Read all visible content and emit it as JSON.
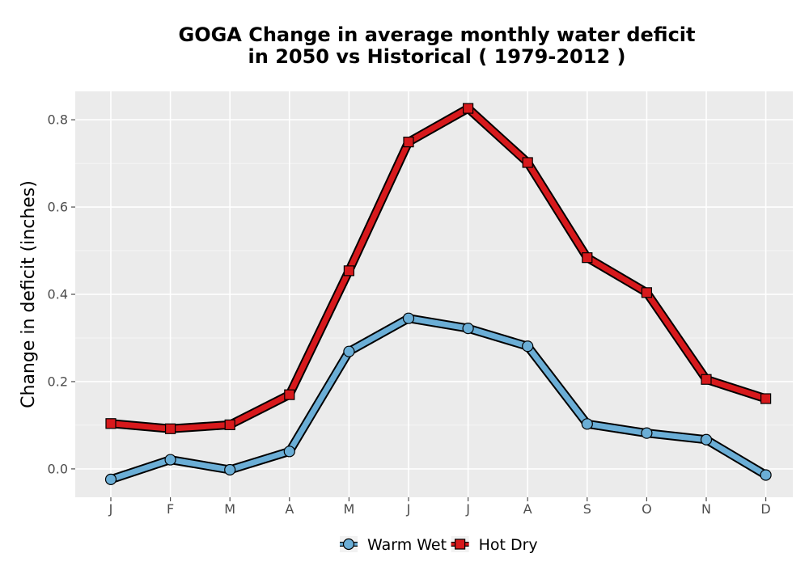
{
  "chart_data": {
    "type": "line",
    "title_line1": "GOGA  Change in average monthly water deficit",
    "title_line2": "in 2050 vs Historical ( 1979-2012 )",
    "xlabel": "",
    "ylabel": "Change in deficit (inches)",
    "categories": [
      "J",
      "F",
      "M",
      "A",
      "M",
      "J",
      "J",
      "A",
      "S",
      "O",
      "N",
      "D"
    ],
    "ylim": [
      -0.065,
      0.865
    ],
    "yticks": [
      0.0,
      0.2,
      0.4,
      0.6,
      0.8
    ],
    "ytick_labels": [
      "0.0",
      "0.2",
      "0.4",
      "0.6",
      "0.8"
    ],
    "grid": true,
    "legend_position": "bottom",
    "series": [
      {
        "name": "Warm Wet",
        "color": "#6baed6",
        "marker": "circle",
        "values": [
          -0.024,
          0.021,
          -0.002,
          0.04,
          0.269,
          0.345,
          0.322,
          0.281,
          0.103,
          0.082,
          0.067,
          -0.014
        ]
      },
      {
        "name": "Hot Dry",
        "color": "#d7191c",
        "marker": "square",
        "values": [
          0.104,
          0.092,
          0.101,
          0.17,
          0.454,
          0.749,
          0.826,
          0.702,
          0.484,
          0.404,
          0.205,
          0.161
        ]
      }
    ]
  }
}
